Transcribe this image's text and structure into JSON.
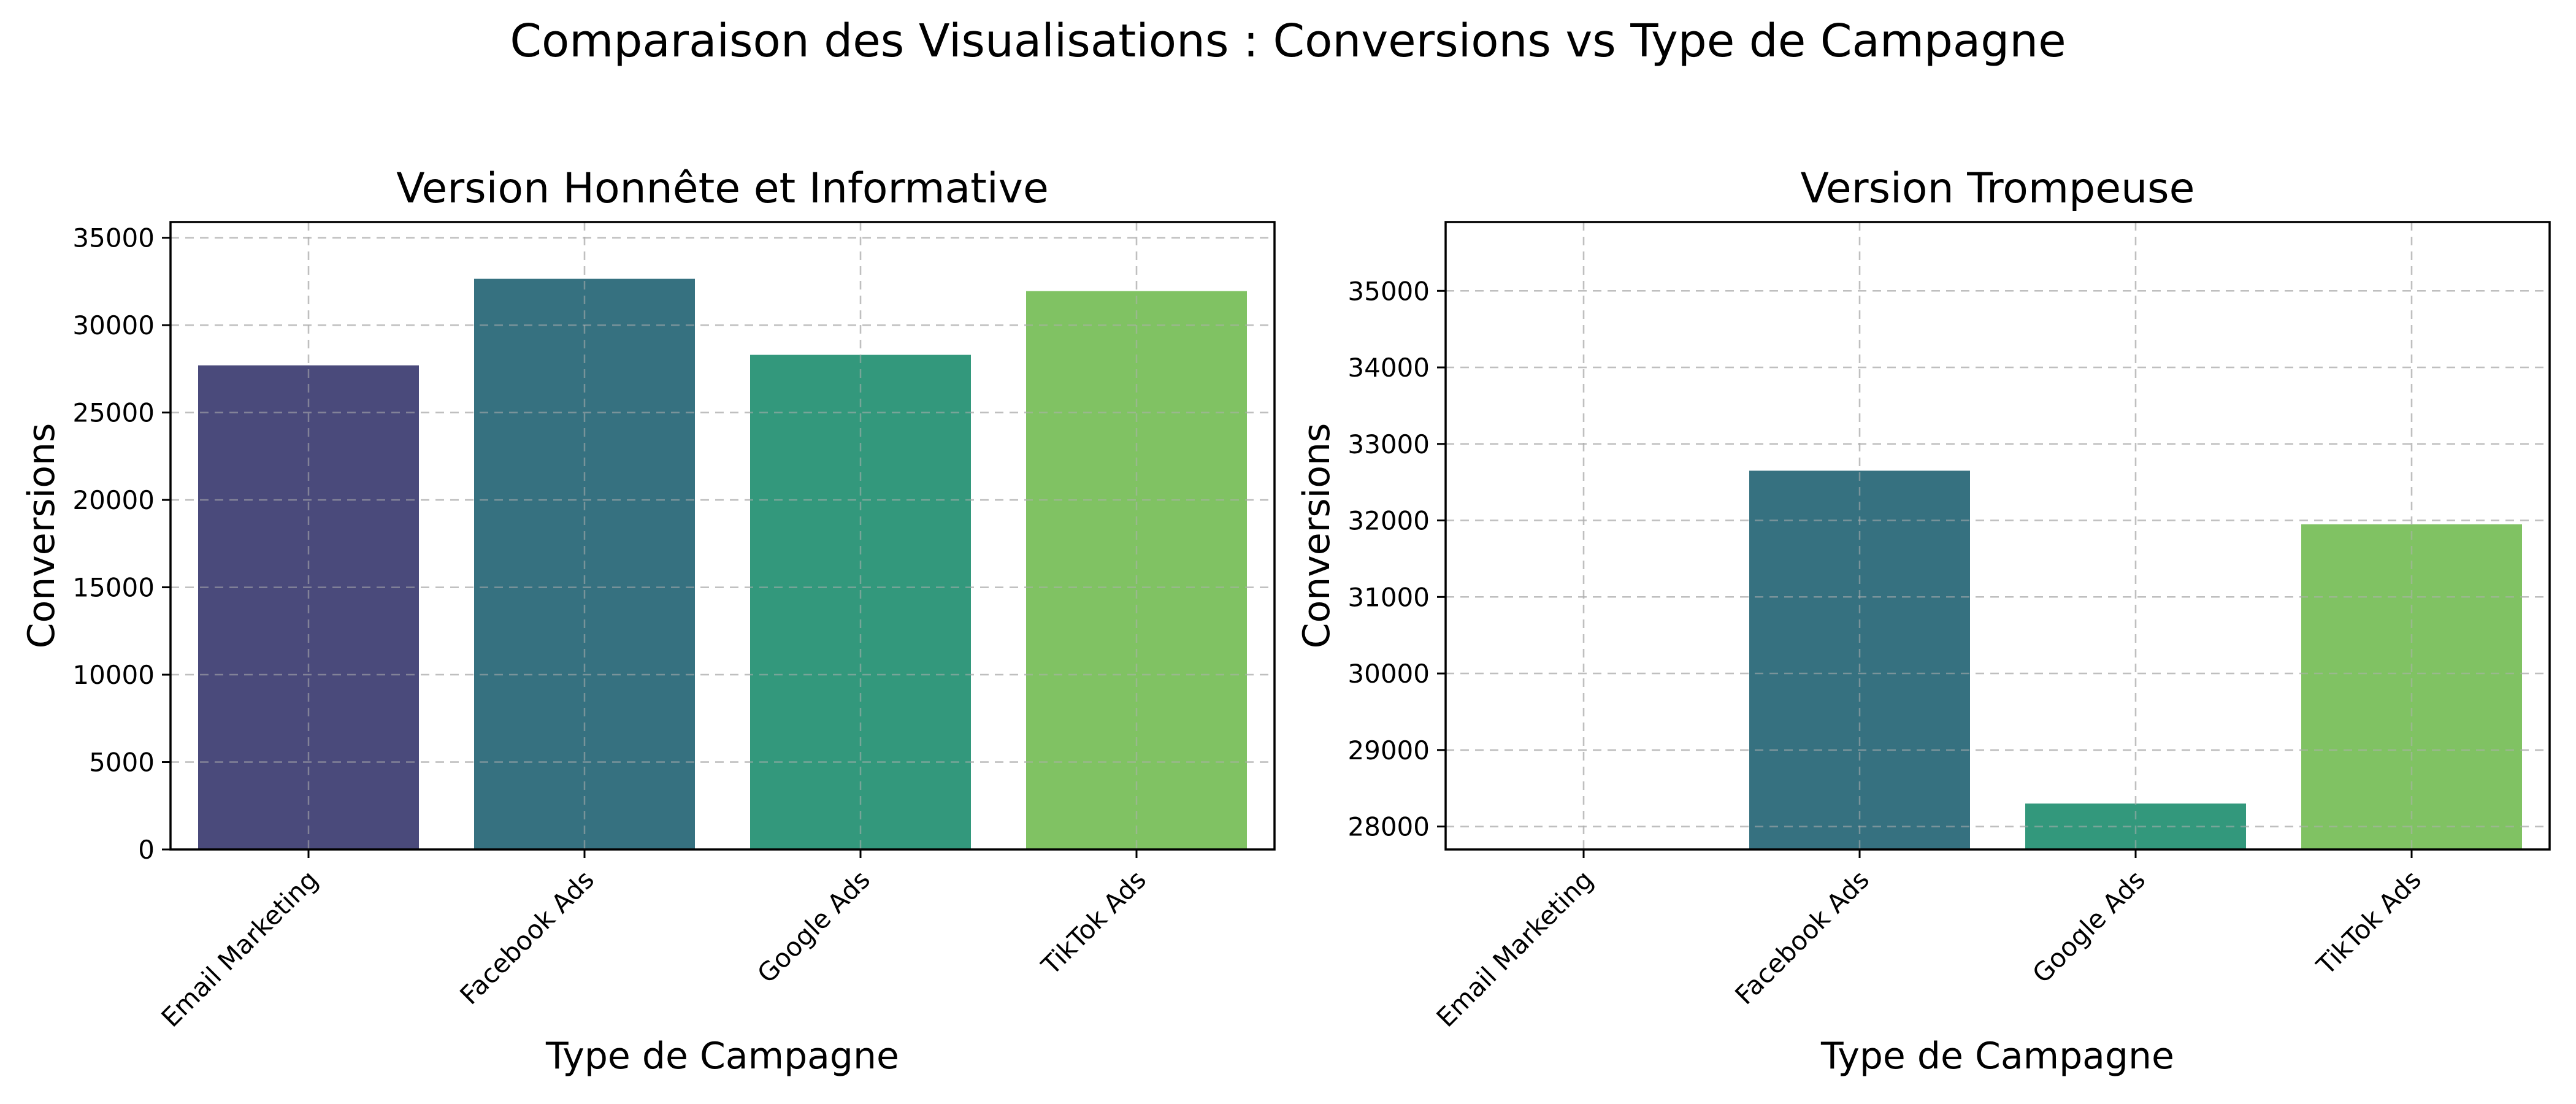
{
  "figure": {
    "suptitle": "Comparaison des Visualisations : Conversions vs Type de Campagne"
  },
  "chart_data": [
    {
      "type": "bar",
      "title": "Version Honnête et Informative",
      "xlabel": "Type de Campagne",
      "ylabel": "Conversions",
      "categories": [
        "Email Marketing",
        "Facebook Ads",
        "Google Ads",
        "TikTok Ads"
      ],
      "values": [
        27700,
        32650,
        28300,
        31950
      ],
      "colors": [
        "#4a4a7b",
        "#367180",
        "#33987c",
        "#80c263"
      ],
      "ylim": [
        0,
        35900
      ],
      "yticks": [
        0,
        5000,
        10000,
        15000,
        20000,
        25000,
        30000,
        35000
      ],
      "grid": true
    },
    {
      "type": "bar",
      "title": "Version Trompeuse",
      "xlabel": "Type de Campagne",
      "ylabel": "Conversions",
      "categories": [
        "Email Marketing",
        "Facebook Ads",
        "Google Ads",
        "TikTok Ads"
      ],
      "values": [
        27700,
        32650,
        28300,
        31950
      ],
      "colors": [
        "#4a4a7b",
        "#367180",
        "#33987c",
        "#80c263"
      ],
      "ylim": [
        27700,
        35900
      ],
      "yticks": [
        28000,
        29000,
        30000,
        31000,
        32000,
        33000,
        34000,
        35000
      ],
      "grid": true
    }
  ]
}
